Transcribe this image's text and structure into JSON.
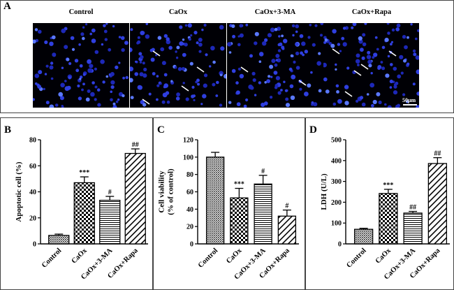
{
  "panel_a": {
    "letter": "A",
    "images": [
      {
        "label": "Control"
      },
      {
        "label": "CaOx"
      },
      {
        "label": "CaOx+3-MA"
      },
      {
        "label": "CaOx+Rapa"
      }
    ],
    "scale_bar": "50μm"
  },
  "chart_data": [
    {
      "type": "bar",
      "letter": "B",
      "ylabel": "Apoptotic cell (%)",
      "ylim": [
        0,
        80
      ],
      "yticks": [
        0,
        20,
        40,
        60,
        80
      ],
      "categories": [
        "Control",
        "CaOx",
        "CaOx+3-MA",
        "CaOx+Rapa"
      ],
      "values": [
        6.5,
        47,
        33.5,
        69.5
      ],
      "errors": [
        1,
        4.5,
        3,
        3.5
      ],
      "annotations": [
        "",
        "***",
        "#",
        "##"
      ],
      "patterns": [
        "dots",
        "checker",
        "hlines",
        "diag"
      ]
    },
    {
      "type": "bar",
      "letter": "C",
      "ylabel": [
        "Cell viability",
        "(% of control)"
      ],
      "ylim": [
        0,
        120
      ],
      "yticks": [
        0,
        20,
        40,
        60,
        80,
        100,
        120
      ],
      "categories": [
        "Control",
        "CaOx",
        "CaOx+3-MA",
        "CaOx+Rapa"
      ],
      "values": [
        100,
        53,
        69,
        32
      ],
      "errors": [
        5.5,
        11,
        10,
        7
      ],
      "annotations": [
        "",
        "***",
        "#",
        "#"
      ],
      "patterns": [
        "dots",
        "checker",
        "hlines",
        "diag"
      ]
    },
    {
      "type": "bar",
      "letter": "D",
      "ylabel": "LDH (U/L)",
      "ylim": [
        0,
        500
      ],
      "yticks": [
        0,
        100,
        200,
        300,
        400,
        500
      ],
      "categories": [
        "Control",
        "CaOx",
        "CaOx+3-MA",
        "CaOx+Rapa"
      ],
      "values": [
        70,
        242,
        148,
        386
      ],
      "errors": [
        5,
        20,
        8,
        28
      ],
      "annotations": [
        "",
        "***",
        "##",
        "##"
      ],
      "patterns": [
        "dots",
        "checker",
        "hlines",
        "diag"
      ]
    }
  ]
}
